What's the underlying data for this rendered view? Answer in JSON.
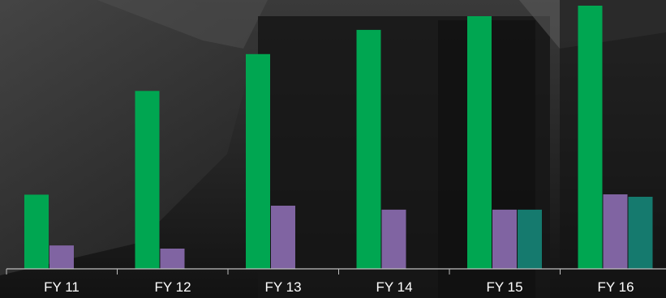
{
  "chart_data": {
    "type": "bar",
    "title": "",
    "xlabel": "",
    "ylabel": "",
    "categories": [
      "FY 11",
      "FY 12",
      "FY 13",
      "FY 14",
      "FY 15",
      "FY 16"
    ],
    "ylim": [
      0,
      100
    ],
    "grid": false,
    "series": [
      {
        "color": "#00a651",
        "values": [
          28.2,
          67.6,
          81.6,
          90.8,
          96.0,
          100.0
        ]
      },
      {
        "color": "#8064a2",
        "values": [
          8.9,
          7.7,
          24.0,
          22.5,
          22.5,
          28.3
        ]
      },
      {
        "color": "#157a6e",
        "values": [
          null,
          null,
          null,
          null,
          22.5,
          27.4
        ]
      }
    ],
    "colors": {
      "background": "#1c1c1c",
      "axis": "#bfbfbf",
      "text": "#ffffff"
    }
  }
}
